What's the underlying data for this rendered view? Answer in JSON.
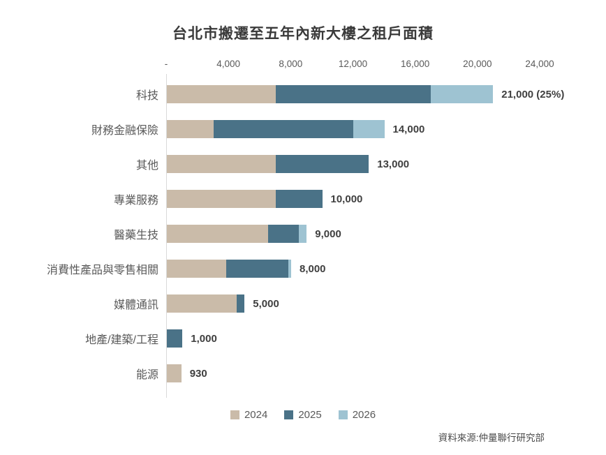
{
  "title": "台北市搬遷至五年內新大樓之租戶面積",
  "source": "資料來源:仲量聯行研究部",
  "colors": {
    "y2024": "#CABBA9",
    "y2025": "#4A7287",
    "y2026": "#9EC3D2",
    "axis_line": "#D9D9D9",
    "text_gray": "#595959",
    "value_text": "#3F3F3F"
  },
  "chart_data": {
    "type": "bar",
    "orientation": "horizontal",
    "stacked": true,
    "grid": false,
    "title": "台北市搬遷至五年內新大樓之租戶面積",
    "xlabel": "",
    "ylabel": "",
    "xlim": [
      0,
      24000
    ],
    "x_ticks": [
      "-",
      "4,000",
      "8,000",
      "12,000",
      "16,000",
      "20,000",
      "24,000"
    ],
    "categories": [
      "科技",
      "財務金融保險",
      "其他",
      "專業服務",
      "醫藥生技",
      "消費性產品與零售相關",
      "媒體通訊",
      "地產/建築/工程",
      "能源"
    ],
    "series": [
      {
        "name": "2024",
        "color": "#CABBA9",
        "values": [
          7000,
          3000,
          7000,
          7000,
          6500,
          3800,
          4500,
          0,
          930
        ]
      },
      {
        "name": "2025",
        "color": "#4A7287",
        "values": [
          10000,
          9000,
          6000,
          3000,
          2000,
          4000,
          500,
          1000,
          0
        ]
      },
      {
        "name": "2026",
        "color": "#9EC3D2",
        "values": [
          4000,
          2000,
          0,
          0,
          500,
          200,
          0,
          0,
          0
        ]
      }
    ],
    "totals": [
      21000,
      14000,
      13000,
      10000,
      9000,
      8000,
      5000,
      1000,
      930
    ],
    "total_labels": [
      "21,000 (25%)",
      "14,000",
      "13,000",
      "10,000",
      "9,000",
      "8,000",
      "5,000",
      "1,000",
      "930"
    ],
    "legend": [
      "2024",
      "2025",
      "2026"
    ],
    "legend_position": "bottom"
  }
}
